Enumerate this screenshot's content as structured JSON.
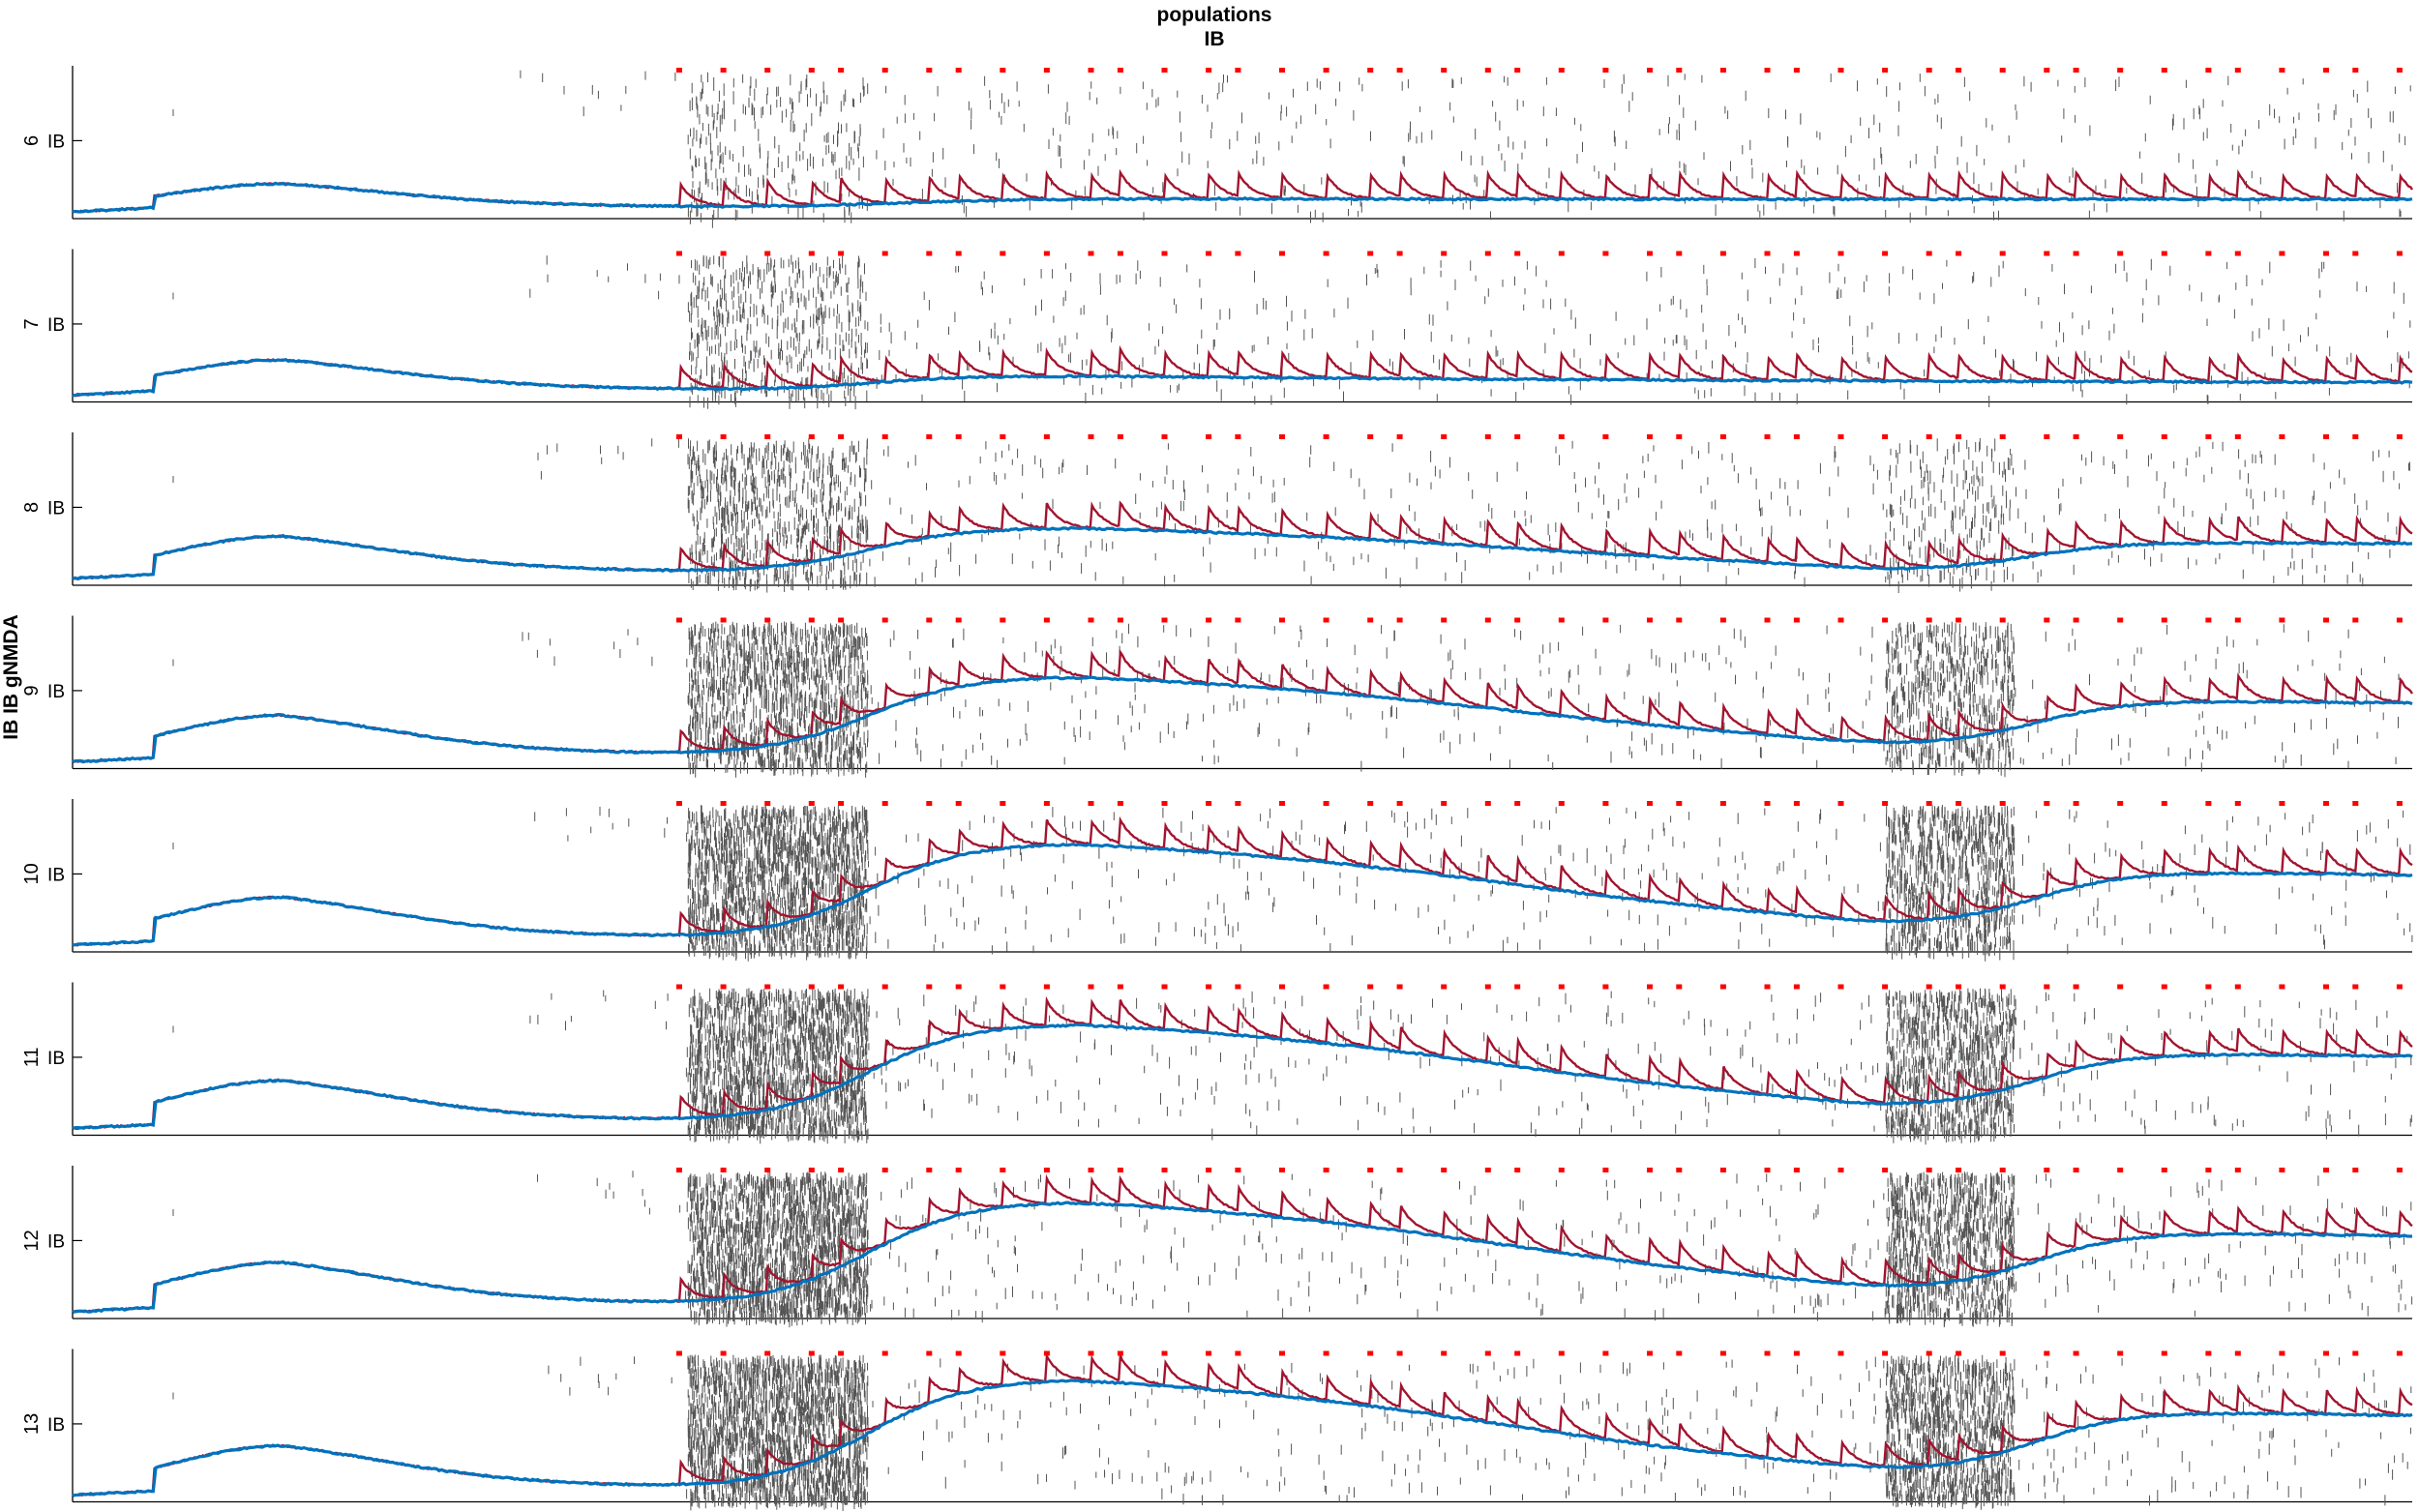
{
  "figure": {
    "title_lines": [
      "populations",
      "IB"
    ],
    "ylabel": "IB IB gNMDA"
  },
  "colors": {
    "raster": "#555555",
    "trace_fast": "#a2142f",
    "trace_slow": "#0072bd",
    "pulse_marker": "#ff0000",
    "axis": "#000000"
  },
  "chart_data": {
    "type": "line",
    "description_of_layers": [
      "spike raster",
      "gNMDA fast trace",
      "gNMDA slow trace",
      "pulse markers"
    ],
    "pulse_count": 44,
    "panels": [
      {
        "label": "6",
        "tick_label": "IB",
        "peak1": 0.19,
        "rise2": 0.0,
        "peak3": 0.0,
        "burst_intensity": 0.05
      },
      {
        "label": "7",
        "tick_label": "IB",
        "peak1": 0.24,
        "rise2": 0.12,
        "peak3": 0.0,
        "burst_intensity": 0.18
      },
      {
        "label": "8",
        "tick_label": "IB",
        "peak1": 0.29,
        "rise2": 0.35,
        "peak3": 0.12,
        "burst_intensity": 0.35
      },
      {
        "label": "9",
        "tick_label": "IB",
        "peak1": 0.32,
        "rise2": 0.6,
        "peak3": 0.6,
        "burst_intensity": 0.65
      },
      {
        "label": "10",
        "tick_label": "IB",
        "peak1": 0.33,
        "rise2": 0.72,
        "peak3": 0.72,
        "burst_intensity": 0.85
      },
      {
        "label": "11",
        "tick_label": "IB",
        "peak1": 0.33,
        "rise2": 0.74,
        "peak3": 0.74,
        "burst_intensity": 0.9
      },
      {
        "label": "12",
        "tick_label": "IB",
        "peak1": 0.34,
        "rise2": 0.78,
        "peak3": 0.78,
        "burst_intensity": 0.95
      },
      {
        "label": "13",
        "tick_label": "IB",
        "peak1": 0.34,
        "rise2": 0.82,
        "peak3": 0.82,
        "burst_intensity": 1.0
      }
    ]
  }
}
